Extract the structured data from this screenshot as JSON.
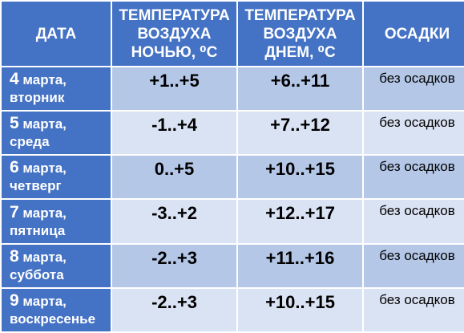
{
  "table": {
    "headers": {
      "date": "ДАТА",
      "night": [
        "ТЕМПЕРАТУРА",
        "ВОЗДУХА",
        "НОЧЬЮ, ⁰С"
      ],
      "day": [
        "ТЕМПЕРАТУРА",
        "ВОЗДУХА",
        "ДНЕМ, ⁰С"
      ],
      "precip": "ОСАДКИ"
    },
    "rows": [
      {
        "day_num": "4",
        "month": "марта,",
        "weekday": "вторник",
        "night": "+1..+5",
        "day": "+6..+11",
        "precip": "без осадков"
      },
      {
        "day_num": "5",
        "month": "марта,",
        "weekday": "среда",
        "night": "-1..+4",
        "day": "+7..+12",
        "precip": "без осадков"
      },
      {
        "day_num": "6",
        "month": "марта,",
        "weekday": "четверг",
        "night": "0..+5",
        "day": "+10..+15",
        "precip": "без осадков"
      },
      {
        "day_num": "7",
        "month": "марта,",
        "weekday": "пятница",
        "night": "-3..+2",
        "day": "+12..+17",
        "precip": "без осадков"
      },
      {
        "day_num": "8",
        "month": "марта,",
        "weekday": "суббота",
        "night": "-2..+3",
        "day": "+11..+16",
        "precip": "без осадков"
      },
      {
        "day_num": "9",
        "month": "марта,",
        "weekday": "воскресенье",
        "night": "-2..+3",
        "day": "+10..+15",
        "precip": "без осадков"
      }
    ]
  }
}
